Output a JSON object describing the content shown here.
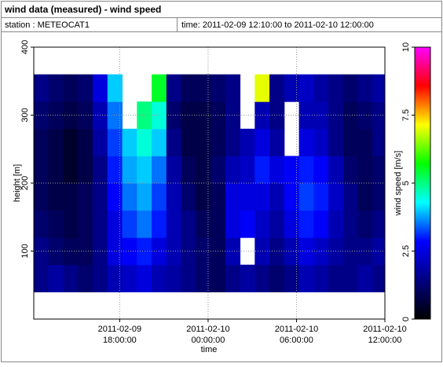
{
  "chart_data": {
    "type": "heatmap",
    "title": "wind data (measured) - wind speed",
    "station": "station : METEOCAT1",
    "period": "time: 2011-02-09 12:10:00 to 2011-02-10 12:00:00",
    "x_label": "time",
    "y_label": "height [m]",
    "colorbar_label": "wind speed [m/s]",
    "xlim": [
      "2011-02-09 12:10:00",
      "2011-02-10 12:00:00"
    ],
    "xticks": [
      {
        "value": "2011-02-09 18:00:00",
        "label": [
          "2011-02-09",
          "18:00:00"
        ]
      },
      {
        "value": "2011-02-10 00:00:00",
        "label": [
          "2011-02-10",
          "00:00:00"
        ]
      },
      {
        "value": "2011-02-10 06:00:00",
        "label": [
          "2011-02-10",
          "06:00:00"
        ]
      },
      {
        "value": "2011-02-10 12:00:00",
        "label": [
          "2011-02-10",
          "12:00:00"
        ]
      }
    ],
    "ylim": [
      0,
      400
    ],
    "yticks": [
      100,
      200,
      300,
      400
    ],
    "clim": [
      0,
      10
    ],
    "cticks": [
      0,
      2.5,
      5,
      7.5,
      10
    ],
    "colorscale": [
      "#000000",
      "#000080",
      "#0000ff",
      "#00ffff",
      "#00ff00",
      "#ffff00",
      "#ff0000",
      "#ff00ff"
    ],
    "grid": true,
    "x": [
      "2011-02-09 12:10:00",
      "2011-02-09 13:10:00",
      "2011-02-09 14:10:00",
      "2011-02-09 15:10:00",
      "2011-02-09 16:10:00",
      "2011-02-09 17:10:00",
      "2011-02-09 18:10:00",
      "2011-02-09 19:10:00",
      "2011-02-09 20:10:00",
      "2011-02-09 21:10:00",
      "2011-02-09 22:10:00",
      "2011-02-09 23:10:00",
      "2011-02-10 00:10:00",
      "2011-02-10 01:10:00",
      "2011-02-10 02:10:00",
      "2011-02-10 03:10:00",
      "2011-02-10 04:10:00",
      "2011-02-10 05:10:00",
      "2011-02-10 06:10:00",
      "2011-02-10 07:10:00",
      "2011-02-10 08:10:00",
      "2011-02-10 09:10:00",
      "2011-02-10 10:10:00",
      "2011-02-10 11:10:00"
    ],
    "y": [
      40,
      80,
      120,
      160,
      200,
      240,
      280,
      320
    ],
    "values": [
      [
        1.5,
        1.8,
        1.5,
        1.2,
        1.5,
        2,
        2.2,
        2.5,
        2,
        1.8,
        1.5,
        1.2,
        1,
        1.5,
        1.8,
        1.5,
        1.2,
        1.5,
        2,
        1.8,
        1.5,
        1.5,
        1.8,
        1.5
      ],
      [
        1.5,
        1.2,
        1,
        1,
        1.5,
        2.5,
        2.8,
        3,
        2.5,
        2,
        1.5,
        1.2,
        1,
        2,
        null,
        2,
        1.5,
        2,
        2.5,
        2.2,
        1.8,
        1.5,
        1.5,
        1.8
      ],
      [
        1.2,
        1,
        0.8,
        1,
        1.5,
        2.5,
        3.2,
        3.5,
        3,
        2,
        1.5,
        1,
        1,
        2.5,
        2.8,
        2.2,
        1.8,
        2.5,
        3,
        2.8,
        2,
        1.5,
        1.2,
        1.5
      ],
      [
        1,
        0.8,
        0.8,
        1,
        1.5,
        2.8,
        3.5,
        3.8,
        3.2,
        2,
        1.2,
        0.8,
        1,
        2.5,
        2.5,
        2.5,
        2,
        2.8,
        3.2,
        3,
        2.2,
        1.5,
        1,
        1.2
      ],
      [
        1,
        0.8,
        0.5,
        0.8,
        1.5,
        3,
        3.8,
        4,
        3.5,
        1.8,
        1,
        0.8,
        1.2,
        2,
        2.2,
        3,
        2.5,
        2.8,
        3,
        2.8,
        2,
        1.2,
        1,
        1.2
      ],
      [
        1,
        0.8,
        0.5,
        0.8,
        1.8,
        3.2,
        4,
        4.5,
        4,
        1.5,
        0.8,
        0.8,
        1,
        1.5,
        2,
        2.5,
        1.8,
        null,
        2.5,
        2.2,
        1.5,
        1,
        1,
        1.5
      ],
      [
        1.2,
        1,
        0.8,
        1,
        2,
        3.5,
        null,
        5,
        4.5,
        1.2,
        0.8,
        0.8,
        1,
        1.5,
        null,
        2,
        1.5,
        null,
        2,
        2,
        1.5,
        1,
        1.2,
        1.5
      ],
      [
        1.5,
        1.2,
        1,
        1.2,
        2.5,
        4,
        null,
        null,
        5.5,
        1.5,
        1,
        1,
        1.2,
        1.5,
        null,
        7,
        1.5,
        2,
        2.2,
        1.8,
        1.5,
        1.2,
        1.5,
        1.8
      ]
    ]
  }
}
